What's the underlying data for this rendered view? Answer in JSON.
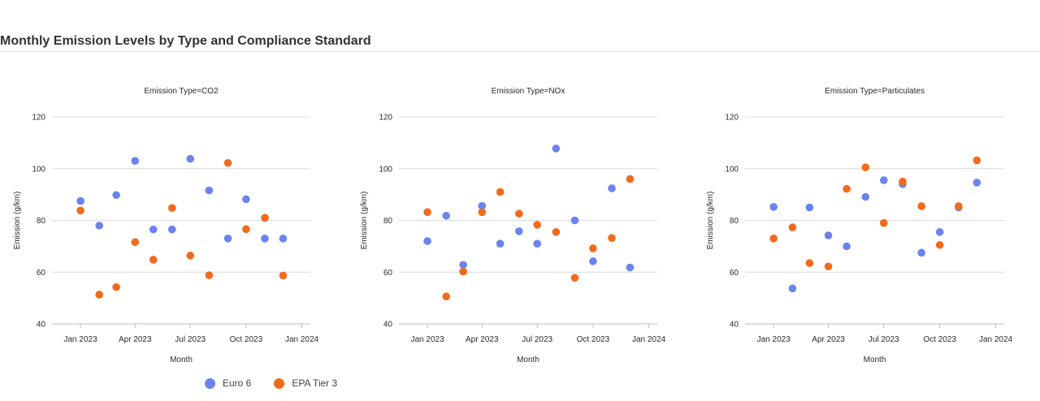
{
  "page": {
    "title": "Monthly Emission Levels by Type and Compliance Standard"
  },
  "colors": {
    "Euro 6": "#6b83ee",
    "EPA Tier 3": "#f26a1b"
  },
  "legend": [
    {
      "name": "Euro 6",
      "color": "#6b83ee"
    },
    {
      "name": "EPA Tier 3",
      "color": "#f26a1b"
    }
  ],
  "chart_data": [
    {
      "type": "scatter",
      "title": "Emission Type=CO2",
      "xlabel": "Month",
      "ylabel": "Emission (g/km)",
      "ylim": [
        40,
        120
      ],
      "yticks": [
        40,
        60,
        80,
        100,
        120
      ],
      "xlim": [
        "2022-11-15",
        "2024-01-15"
      ],
      "xticks": [
        {
          "date": "2023-01-01",
          "label": "Jan 2023"
        },
        {
          "date": "2023-04-01",
          "label": "Apr 2023"
        },
        {
          "date": "2023-07-01",
          "label": "Jul 2023"
        },
        {
          "date": "2023-10-01",
          "label": "Oct 2023"
        },
        {
          "date": "2024-01-01",
          "label": "Jan 2024"
        }
      ],
      "grid": true,
      "series": [
        {
          "name": "Euro 6",
          "points": [
            {
              "x": "2023-01-01",
              "y": 87.5
            },
            {
              "x": "2023-02-01",
              "y": 78
            },
            {
              "x": "2023-03-01",
              "y": 89.8
            },
            {
              "x": "2023-04-01",
              "y": 103
            },
            {
              "x": "2023-05-01",
              "y": 76.5
            },
            {
              "x": "2023-06-01",
              "y": 76.5
            },
            {
              "x": "2023-07-01",
              "y": 103.8
            },
            {
              "x": "2023-08-01",
              "y": 91.6
            },
            {
              "x": "2023-09-01",
              "y": 73
            },
            {
              "x": "2023-10-01",
              "y": 88.2
            },
            {
              "x": "2023-11-01",
              "y": 73
            },
            {
              "x": "2023-12-01",
              "y": 73
            }
          ]
        },
        {
          "name": "EPA Tier 3",
          "points": [
            {
              "x": "2023-01-01",
              "y": 83.8
            },
            {
              "x": "2023-02-01",
              "y": 51.3
            },
            {
              "x": "2023-03-01",
              "y": 54.2
            },
            {
              "x": "2023-04-01",
              "y": 71.6
            },
            {
              "x": "2023-05-01",
              "y": 64.8
            },
            {
              "x": "2023-06-01",
              "y": 84.8
            },
            {
              "x": "2023-07-01",
              "y": 66.4
            },
            {
              "x": "2023-08-01",
              "y": 58.8
            },
            {
              "x": "2023-09-01",
              "y": 102.2
            },
            {
              "x": "2023-10-01",
              "y": 76.6
            },
            {
              "x": "2023-11-01",
              "y": 81
            },
            {
              "x": "2023-12-01",
              "y": 58.7
            }
          ]
        }
      ]
    },
    {
      "type": "scatter",
      "title": "Emission Type=NOx",
      "xlabel": "Month",
      "ylabel": "Emission (g/km)",
      "ylim": [
        40,
        120
      ],
      "yticks": [
        40,
        60,
        80,
        100,
        120
      ],
      "xlim": [
        "2022-11-15",
        "2024-01-15"
      ],
      "xticks": [
        {
          "date": "2023-01-01",
          "label": "Jan 2023"
        },
        {
          "date": "2023-04-01",
          "label": "Apr 2023"
        },
        {
          "date": "2023-07-01",
          "label": "Jul 2023"
        },
        {
          "date": "2023-10-01",
          "label": "Oct 2023"
        },
        {
          "date": "2024-01-01",
          "label": "Jan 2024"
        }
      ],
      "grid": true,
      "series": [
        {
          "name": "Euro 6",
          "points": [
            {
              "x": "2023-01-01",
              "y": 72
            },
            {
              "x": "2023-02-01",
              "y": 81.8
            },
            {
              "x": "2023-03-01",
              "y": 62.8
            },
            {
              "x": "2023-04-01",
              "y": 85.6
            },
            {
              "x": "2023-05-01",
              "y": 71
            },
            {
              "x": "2023-06-01",
              "y": 75.8
            },
            {
              "x": "2023-07-01",
              "y": 71
            },
            {
              "x": "2023-08-01",
              "y": 107.8
            },
            {
              "x": "2023-09-01",
              "y": 80
            },
            {
              "x": "2023-10-01",
              "y": 64.2
            },
            {
              "x": "2023-11-01",
              "y": 92.4
            },
            {
              "x": "2023-12-01",
              "y": 61.8
            }
          ]
        },
        {
          "name": "EPA Tier 3",
          "points": [
            {
              "x": "2023-01-01",
              "y": 83.2
            },
            {
              "x": "2023-02-01",
              "y": 50.6
            },
            {
              "x": "2023-03-01",
              "y": 60.2
            },
            {
              "x": "2023-04-01",
              "y": 83.2
            },
            {
              "x": "2023-05-01",
              "y": 91
            },
            {
              "x": "2023-06-01",
              "y": 82.6
            },
            {
              "x": "2023-07-01",
              "y": 78.3
            },
            {
              "x": "2023-08-01",
              "y": 75.5
            },
            {
              "x": "2023-09-01",
              "y": 57.8
            },
            {
              "x": "2023-10-01",
              "y": 69.2
            },
            {
              "x": "2023-11-01",
              "y": 73.2
            },
            {
              "x": "2023-12-01",
              "y": 96
            }
          ]
        }
      ]
    },
    {
      "type": "scatter",
      "title": "Emission Type=Particulates",
      "xlabel": "Month",
      "ylabel": "Emission (g/km)",
      "ylim": [
        40,
        120
      ],
      "yticks": [
        40,
        60,
        80,
        100,
        120
      ],
      "xlim": [
        "2022-11-15",
        "2024-01-15"
      ],
      "xticks": [
        {
          "date": "2023-01-01",
          "label": "Jan 2023"
        },
        {
          "date": "2023-04-01",
          "label": "Apr 2023"
        },
        {
          "date": "2023-07-01",
          "label": "Jul 2023"
        },
        {
          "date": "2023-10-01",
          "label": "Oct 2023"
        },
        {
          "date": "2024-01-01",
          "label": "Jan 2024"
        }
      ],
      "grid": true,
      "series": [
        {
          "name": "Euro 6",
          "points": [
            {
              "x": "2023-01-01",
              "y": 85.2
            },
            {
              "x": "2023-02-01",
              "y": 53.7
            },
            {
              "x": "2023-03-01",
              "y": 85
            },
            {
              "x": "2023-04-01",
              "y": 74.2
            },
            {
              "x": "2023-05-01",
              "y": 70
            },
            {
              "x": "2023-06-01",
              "y": 89.1
            },
            {
              "x": "2023-07-01",
              "y": 95.5
            },
            {
              "x": "2023-08-01",
              "y": 94
            },
            {
              "x": "2023-09-01",
              "y": 67.5
            },
            {
              "x": "2023-10-01",
              "y": 75.5
            },
            {
              "x": "2023-11-01",
              "y": 85
            },
            {
              "x": "2023-12-01",
              "y": 94.6
            }
          ]
        },
        {
          "name": "EPA Tier 3",
          "points": [
            {
              "x": "2023-01-01",
              "y": 73
            },
            {
              "x": "2023-02-01",
              "y": 77.3
            },
            {
              "x": "2023-03-01",
              "y": 63.5
            },
            {
              "x": "2023-04-01",
              "y": 62.2
            },
            {
              "x": "2023-05-01",
              "y": 92.2
            },
            {
              "x": "2023-06-01",
              "y": 100.5
            },
            {
              "x": "2023-07-01",
              "y": 79
            },
            {
              "x": "2023-08-01",
              "y": 95
            },
            {
              "x": "2023-09-01",
              "y": 85.5
            },
            {
              "x": "2023-10-01",
              "y": 70.5
            },
            {
              "x": "2023-11-01",
              "y": 85.5
            },
            {
              "x": "2023-12-01",
              "y": 103.2
            }
          ]
        }
      ]
    }
  ]
}
